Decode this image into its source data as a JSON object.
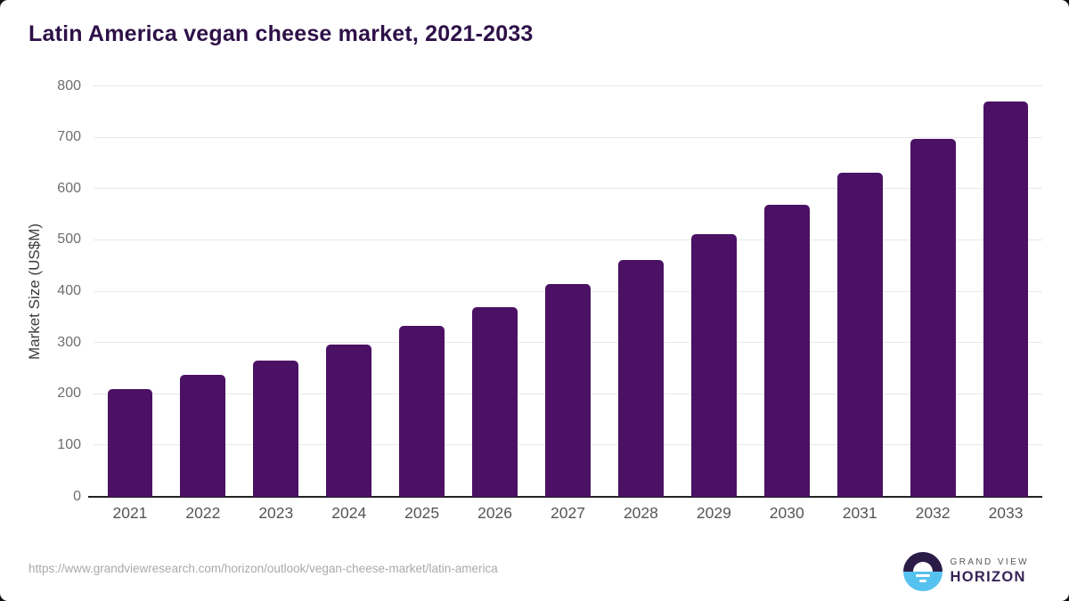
{
  "page": {
    "title": "Latin America vegan cheese market, 2021-2033",
    "source_url": "https://www.grandviewresearch.com/horizon/outlook/vegan-cheese-market/latin-america"
  },
  "logo": {
    "name": "grand-view-horizon",
    "line1": "GRAND VIEW",
    "line2": "HORIZON",
    "mark": "sunrise-horizon-circle-icon"
  },
  "chart_data": {
    "type": "bar",
    "title": "Latin America vegan cheese market, 2021-2033",
    "categories": [
      "2021",
      "2022",
      "2023",
      "2024",
      "2025",
      "2026",
      "2027",
      "2028",
      "2029",
      "2030",
      "2031",
      "2032",
      "2033"
    ],
    "values": [
      210,
      237,
      266,
      296,
      333,
      370,
      414,
      461,
      512,
      570,
      632,
      698,
      771
    ],
    "xlabel": "",
    "ylabel": "Market Size (US$M)",
    "ylim": [
      0,
      800
    ],
    "ytick_step": 100,
    "yticks": [
      0,
      100,
      200,
      300,
      400,
      500,
      600,
      700,
      800
    ],
    "grid": "horizontal",
    "legend": "none",
    "bar_color": "#4a1164"
  },
  "colors": {
    "bar": "#4a1164",
    "title": "#2e1048",
    "gridline": "#e8e8e8",
    "axis_line": "#222222",
    "tick_label": "#6e6e6e",
    "x_label": "#565656",
    "axis_title": "#3d3d3d",
    "url_text": "#aaaaaa",
    "logo_top": "#2b1b47",
    "logo_bottom": "#56c2f0",
    "logo_text_gray": "#55555f",
    "logo_text_purple": "#362457"
  }
}
